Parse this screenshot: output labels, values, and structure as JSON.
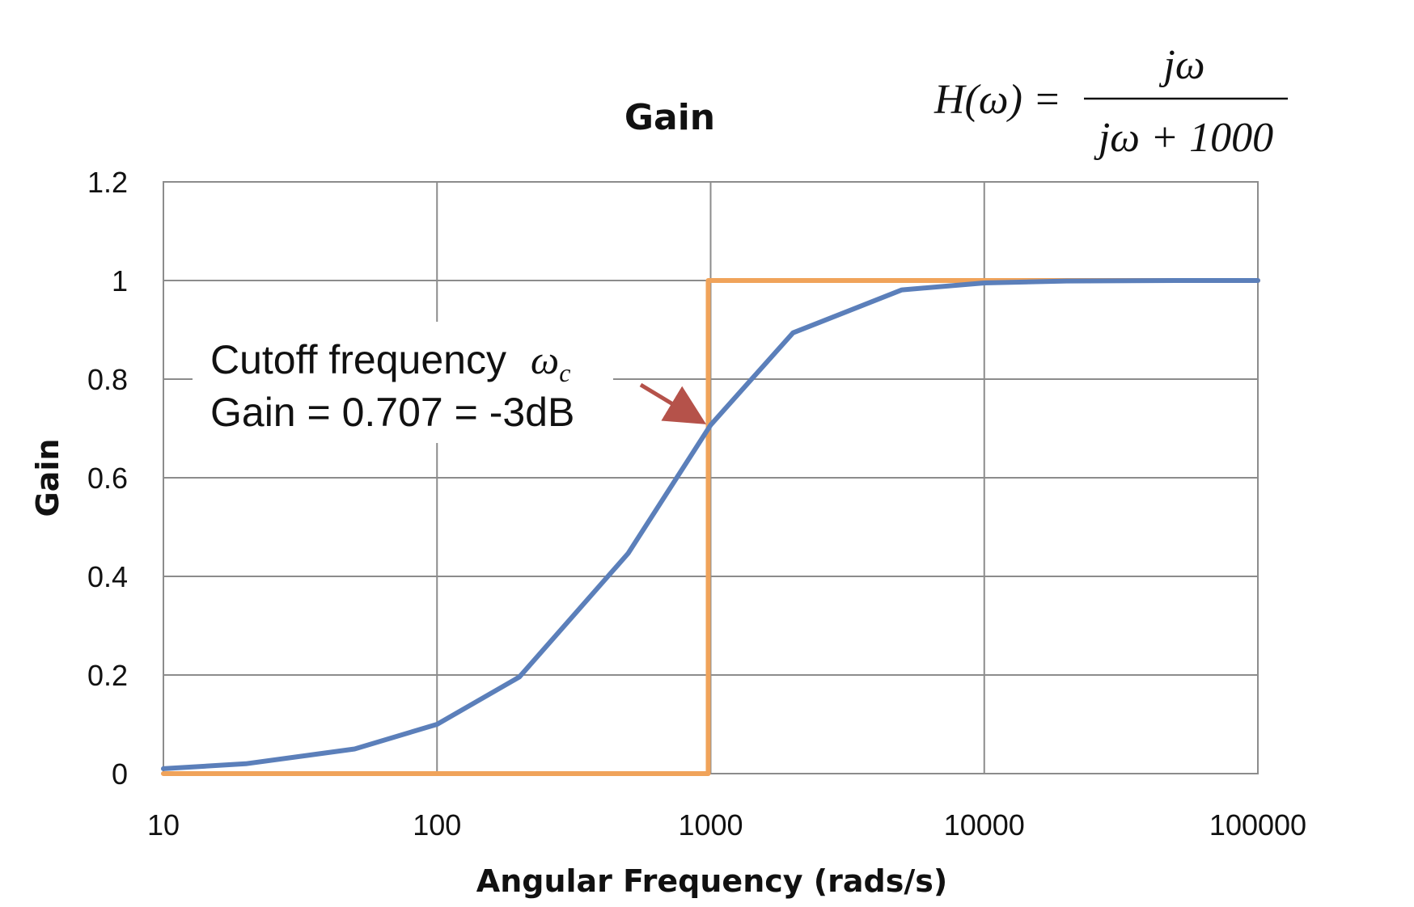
{
  "chart_data": {
    "type": "line",
    "title": "Gain",
    "xlabel": "Angular Frequency (rads/s)",
    "ylabel": "Gain",
    "x_scale": "log",
    "xlim": [
      10,
      100000
    ],
    "ylim": [
      0,
      1.2
    ],
    "x_ticks": [
      "10",
      "100",
      "1000",
      "10000",
      "100000"
    ],
    "y_ticks": [
      "0",
      "0.2",
      "0.4",
      "0.6",
      "0.8",
      "1",
      "1.2"
    ],
    "grid": true,
    "series": [
      {
        "color": "#5b7fba",
        "x": [
          10,
          20,
          50,
          100,
          200,
          500,
          1000,
          2000,
          5000,
          10000,
          20000,
          50000,
          100000
        ],
        "y": [
          0.01,
          0.02,
          0.05,
          0.1,
          0.196,
          0.447,
          0.707,
          0.894,
          0.981,
          0.995,
          0.999,
          1.0,
          1.0
        ]
      },
      {
        "color": "#f0a35a",
        "x": [
          10,
          980,
          980,
          1000,
          100000
        ],
        "y": [
          0,
          0,
          1,
          1,
          1
        ]
      }
    ],
    "annotation": {
      "line1": "Cutoff frequency",
      "symbol": "ω",
      "subscript": "c",
      "line2": "Gain = 0.707 = -3dB",
      "arrow_color": "#b5524a",
      "target": [
        1000,
        0.707
      ]
    },
    "formula": {
      "lhs": "H(ω) =",
      "numerator": "jω",
      "denominator": "jω + 1000"
    }
  }
}
